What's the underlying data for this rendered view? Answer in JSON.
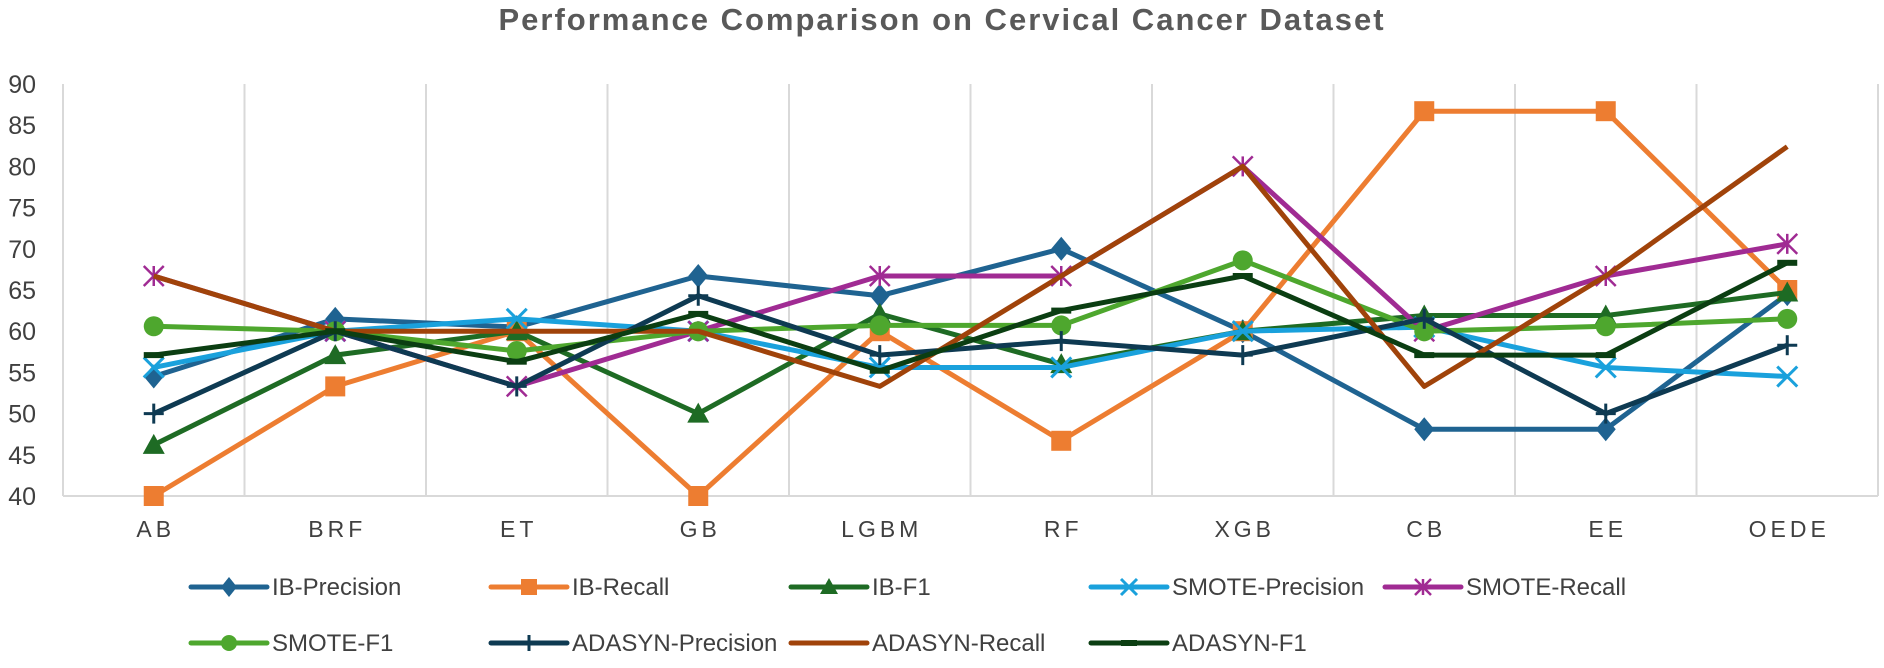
{
  "chart_data": {
    "type": "line",
    "title": "Performance Comparison on Cervical Cancer Dataset",
    "xlabel": "",
    "ylabel": "",
    "ylim": [
      40,
      90
    ],
    "yticks": [
      40,
      45,
      50,
      55,
      60,
      65,
      70,
      75,
      80,
      85,
      90
    ],
    "grid": "vertical",
    "legend_position": "bottom",
    "categories": [
      "AB",
      "BRF",
      "ET",
      "GB",
      "LGBM",
      "RF",
      "XGB",
      "CB",
      "EE",
      "OEDE"
    ],
    "series": [
      {
        "name": "IB-Precision",
        "color": "#1F6391",
        "marker": "diamond",
        "values": [
          54.5,
          61.5,
          60.5,
          66.7,
          64.3,
          70.0,
          60.0,
          48.1,
          48.1,
          64.5
        ]
      },
      {
        "name": "IB-Recall",
        "color": "#ED7D31",
        "marker": "square",
        "values": [
          40.0,
          53.3,
          60.0,
          40.0,
          60.0,
          46.7,
          60.0,
          86.7,
          86.7,
          65.0
        ]
      },
      {
        "name": "IB-F1",
        "color": "#1E6B24",
        "marker": "triangle",
        "values": [
          46.2,
          57.1,
          60.0,
          50.0,
          62.1,
          56.0,
          60.0,
          61.9,
          61.9,
          64.7
        ]
      },
      {
        "name": "SMOTE-Precision",
        "color": "#1AA1DC",
        "marker": "x",
        "values": [
          55.6,
          60.0,
          61.5,
          60.0,
          55.6,
          55.6,
          60.0,
          60.5,
          55.6,
          54.5
        ]
      },
      {
        "name": "SMOTE-Recall",
        "color": "#A02B93",
        "marker": "star",
        "values": [
          66.7,
          60.0,
          53.3,
          60.0,
          66.7,
          66.7,
          80.0,
          60.0,
          66.7,
          70.6
        ]
      },
      {
        "name": "SMOTE-F1",
        "color": "#4EA72E",
        "marker": "circle",
        "values": [
          60.6,
          60.0,
          57.6,
          60.0,
          60.7,
          60.7,
          68.6,
          60.0,
          60.6,
          61.5
        ]
      },
      {
        "name": "ADASYN-Precision",
        "color": "#0E3A52",
        "marker": "plus",
        "values": [
          50.0,
          60.0,
          53.3,
          64.3,
          57.1,
          58.8,
          57.1,
          61.5,
          50.0,
          58.3
        ]
      },
      {
        "name": "ADASYN-Recall",
        "color": "#A0430A",
        "marker": "none",
        "values": [
          66.7,
          60.0,
          60.0,
          60.0,
          53.3,
          66.7,
          80.0,
          53.3,
          66.7,
          82.4
        ]
      },
      {
        "name": "ADASYN-F1",
        "color": "#0B3E12",
        "marker": "dash",
        "values": [
          57.1,
          60.0,
          56.3,
          62.1,
          55.2,
          62.5,
          66.7,
          57.1,
          57.1,
          68.3
        ]
      }
    ]
  }
}
